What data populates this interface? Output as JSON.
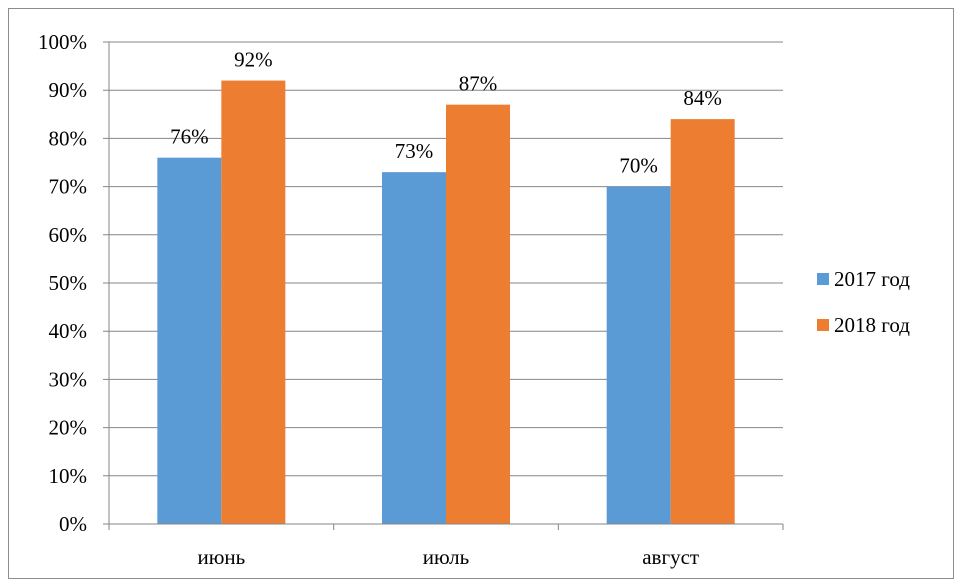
{
  "chart_data": {
    "type": "bar",
    "categories": [
      "июнь",
      "июль",
      "август"
    ],
    "series": [
      {
        "name": "2017 год",
        "values": [
          76,
          73,
          70
        ],
        "color": "#5b9bd5"
      },
      {
        "name": "2018 год",
        "values": [
          92,
          87,
          84
        ],
        "color": "#ed7d31"
      }
    ],
    "data_labels": [
      [
        "76%",
        "73%",
        "70%"
      ],
      [
        "92%",
        "87%",
        "84%"
      ]
    ],
    "y_ticks": [
      "0%",
      "10%",
      "20%",
      "30%",
      "40%",
      "50%",
      "60%",
      "70%",
      "80%",
      "90%",
      "100%"
    ],
    "ylim": [
      0,
      100
    ],
    "grid": true,
    "legend_position": "right",
    "title": "",
    "xlabel": "",
    "ylabel": ""
  },
  "colors": {
    "gridline": "#868686",
    "axis": "#868686",
    "frame": "#8c8c8c"
  }
}
